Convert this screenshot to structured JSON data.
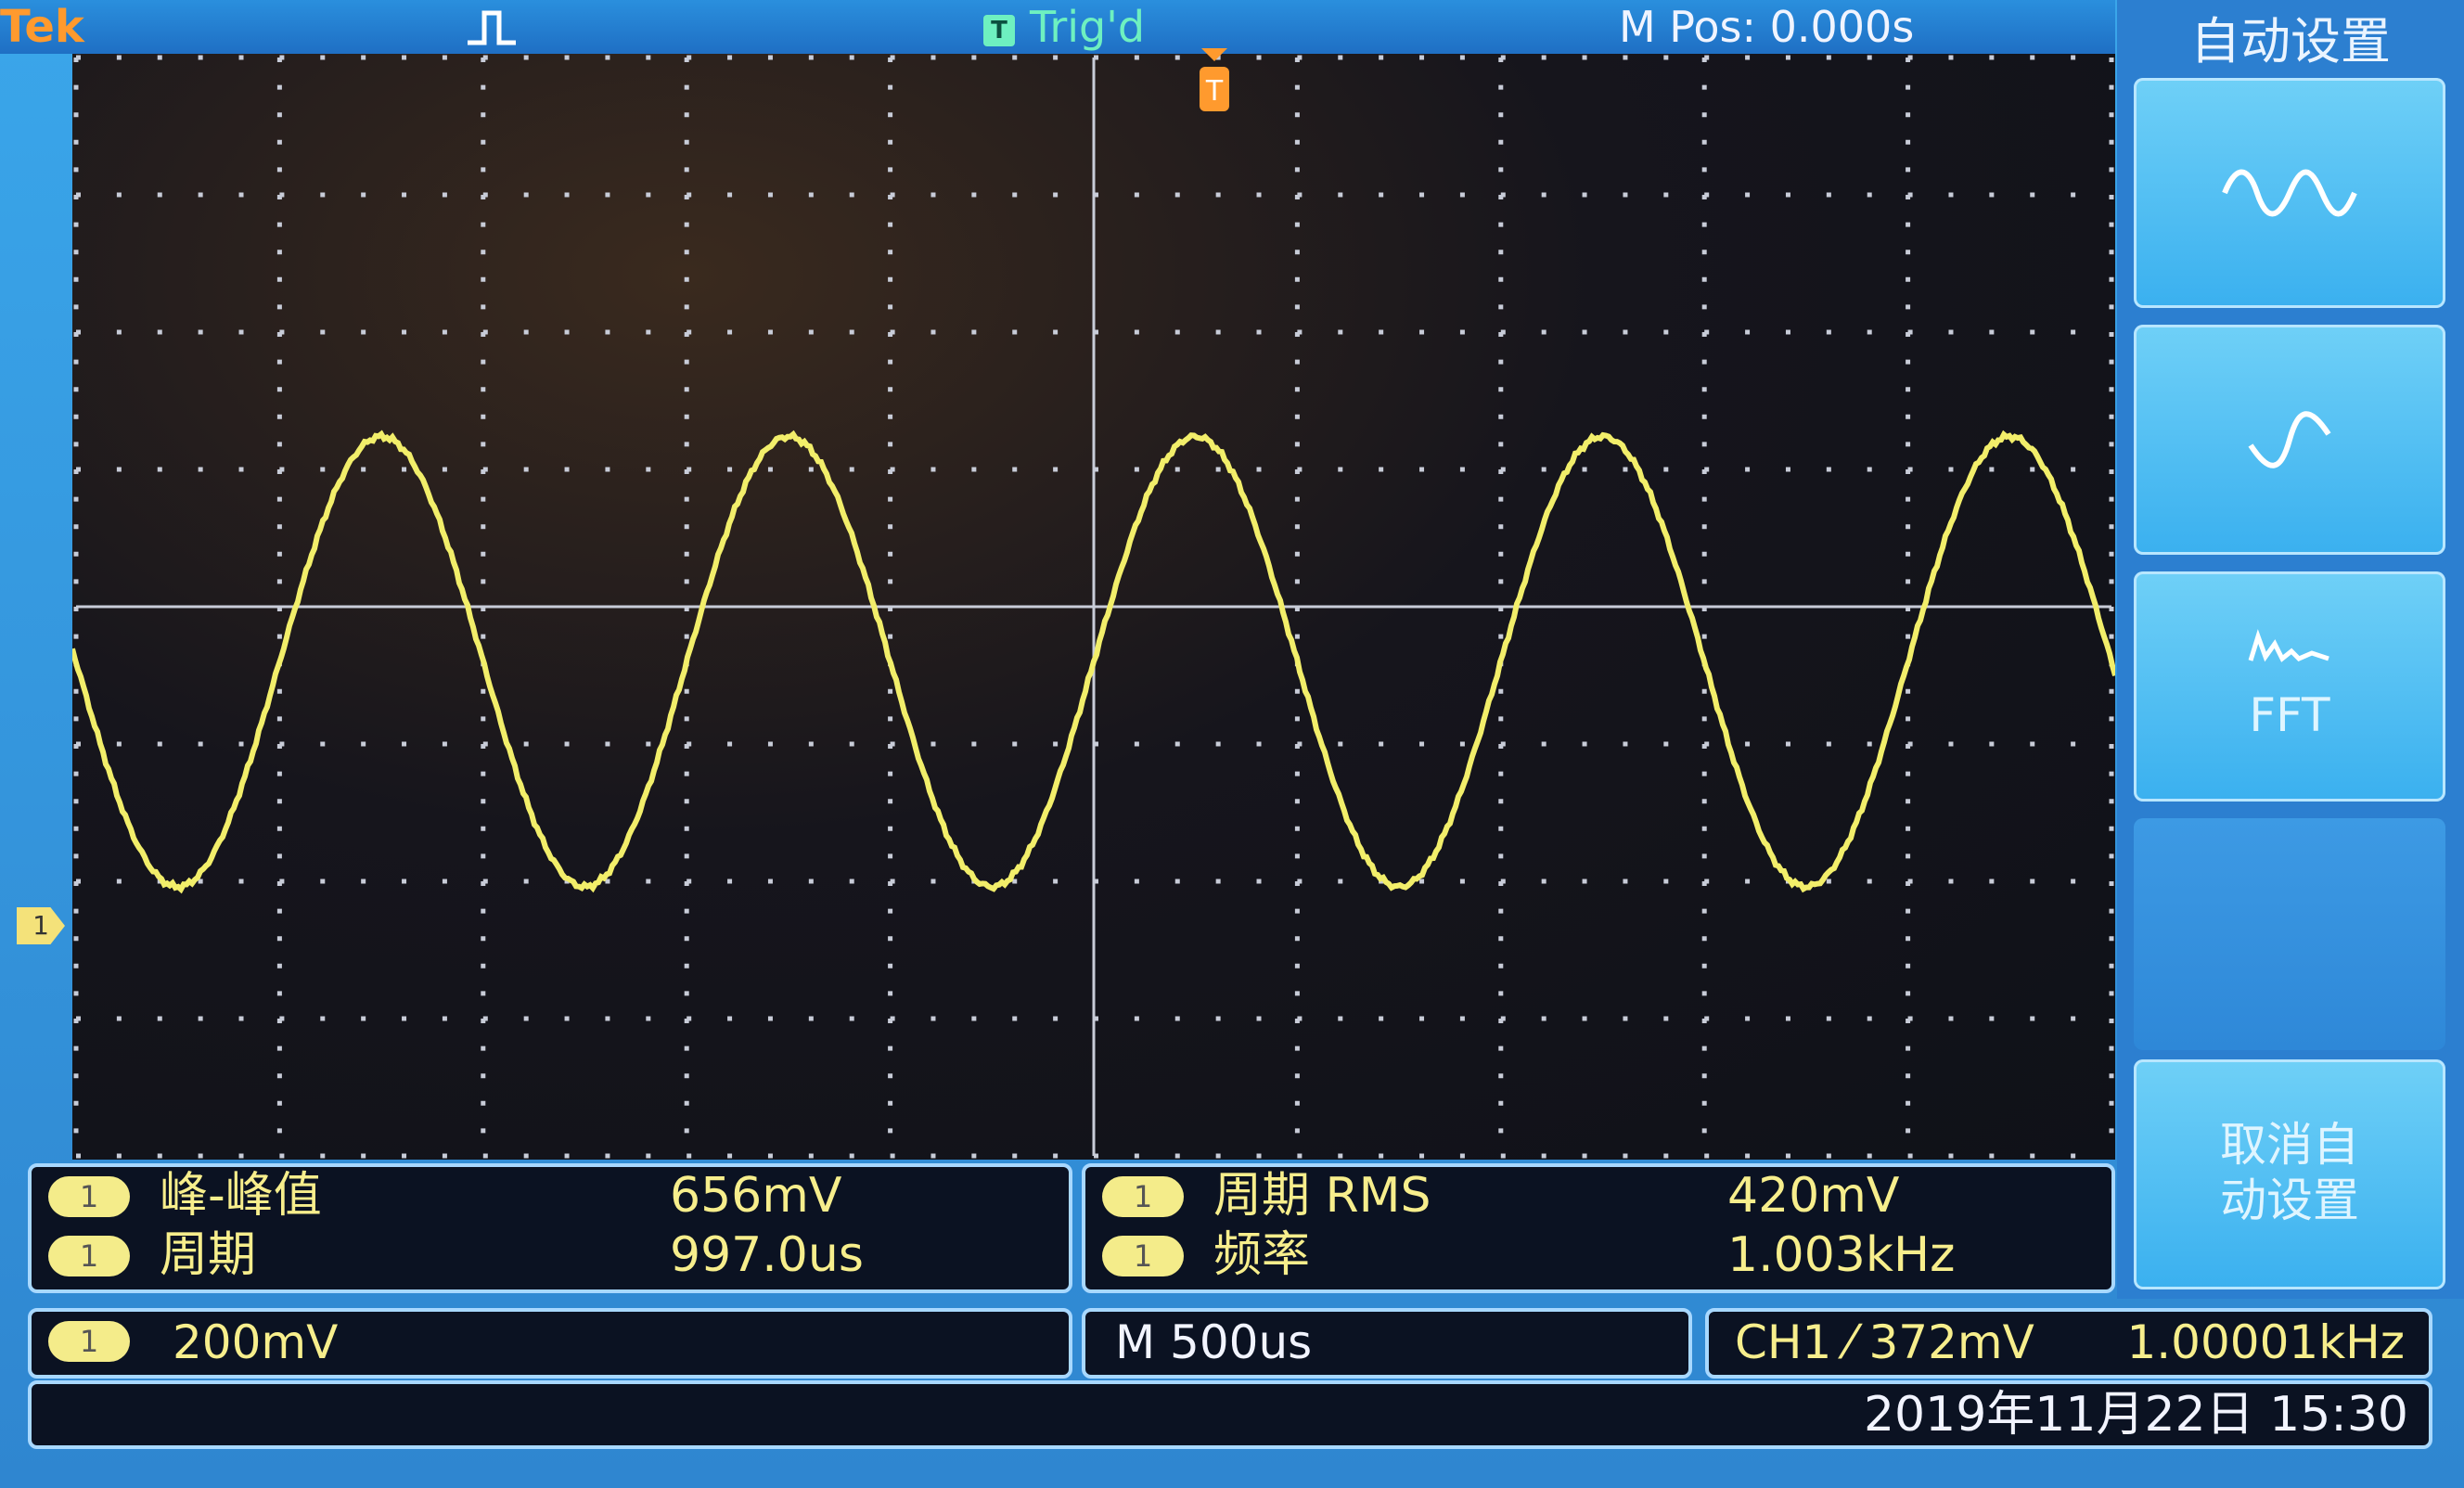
{
  "header": {
    "brand": "Tek",
    "acq_icon": "pulse-icon",
    "trigger_badge": "T",
    "trigger_status": "Trig'd",
    "m_pos": "M Pos: 0.000s"
  },
  "side_menu": {
    "title": "自动设置",
    "buttons": [
      {
        "icon": "multi-cycle-sine-icon",
        "label": ""
      },
      {
        "icon": "single-cycle-sine-icon",
        "label": ""
      },
      {
        "icon": "spectrum-icon",
        "label": "FFT"
      },
      {
        "icon": "",
        "label": ""
      },
      {
        "icon": "",
        "label": "取消自\n动设置"
      }
    ]
  },
  "waveform": {
    "channel": "1",
    "color": "#f2ee6a",
    "period_div": 2.0,
    "amplitude_div": 1.64,
    "offset_div": -0.4
  },
  "measurements": {
    "left": [
      {
        "channel": "1",
        "name": "峰-峰值",
        "value": "656mV"
      },
      {
        "channel": "1",
        "name": "周期",
        "value": "997.0us"
      }
    ],
    "right": [
      {
        "channel": "1",
        "name": "周期 RMS",
        "value": "420mV"
      },
      {
        "channel": "1",
        "name": "频率",
        "value": "1.003kHz"
      }
    ]
  },
  "status": {
    "ch1_channel": "1",
    "ch1_scale": "200mV",
    "timebase": "M 500us",
    "trigger": "CH1 ⁄ 372mV",
    "trigger_freq": "1.00001kHz"
  },
  "datetime": "2019年11月22日 15:30",
  "colors": {
    "accent_blue": "#2f86d0",
    "trace_yellow": "#f2ee6a",
    "grid": "#c8ccd8",
    "trigger_orange": "#ff9a2e"
  }
}
